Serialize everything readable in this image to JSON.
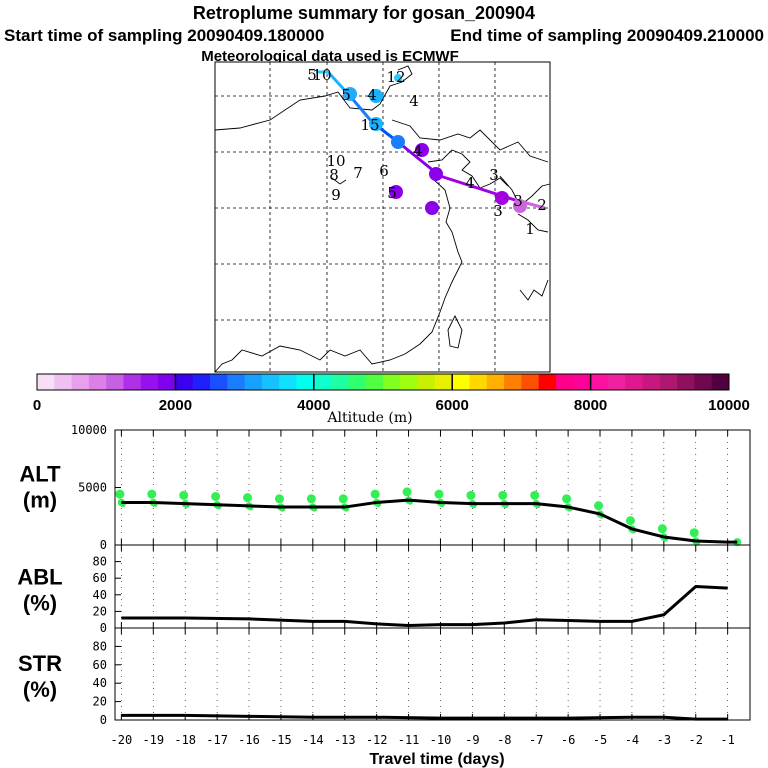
{
  "title": "Retroplume summary for gosan_200904",
  "start_label": "Start time of sampling 20090409.180000",
  "end_label": "End time of sampling 20090409.210000",
  "met_label": "Meteorological data used is ECMWF",
  "chart_data": [
    {
      "type": "map",
      "name": "trajectory-map",
      "track": [
        {
          "day": -1,
          "alt": 300,
          "color": "#cc66dd"
        },
        {
          "day": -2,
          "alt": 600,
          "color": "#a300e0"
        },
        {
          "day": -3,
          "alt": 1200,
          "color": "#8a00e8"
        },
        {
          "day": -4,
          "alt": 2200,
          "color": "#0055ff"
        },
        {
          "day": -5,
          "alt": 2700,
          "color": "#1a7cff"
        },
        {
          "day": -6,
          "alt": 3300,
          "color": "#17b3ff"
        },
        {
          "day": -7,
          "alt": 3500,
          "color": "#22ccff"
        },
        {
          "day": -8,
          "alt": 3600,
          "color": "#22ccff"
        },
        {
          "day": -9,
          "alt": 3600,
          "color": "#22ccff"
        }
      ],
      "day_labels": [
        "5",
        "10",
        "5",
        "4",
        "12",
        "15",
        "10",
        "8",
        "7",
        "6",
        "9",
        "5",
        "4",
        "4",
        "4",
        "3",
        "3",
        "3",
        "2",
        "1"
      ]
    },
    {
      "type": "colorbar",
      "name": "altitude-colorbar",
      "xlabel": "Altitude (m)",
      "ticks": [
        "0",
        "2000",
        "4000",
        "6000",
        "8000",
        "10000"
      ],
      "range": [
        0,
        10000
      ],
      "colors": [
        "#f7e0f7",
        "#f0c0f0",
        "#e8a0ec",
        "#dc80e8",
        "#c860e4",
        "#b030e8",
        "#9810ee",
        "#8000f0",
        "#3a00f0",
        "#2020ff",
        "#1a50ff",
        "#1a7cff",
        "#17a0ff",
        "#17c0ff",
        "#10e0ff",
        "#00ffee",
        "#10ffcc",
        "#20ffa0",
        "#30ff70",
        "#50ff40",
        "#80ff20",
        "#a0ff10",
        "#c8f000",
        "#e8f000",
        "#ffff00",
        "#ffd800",
        "#ffb000",
        "#ff8000",
        "#ff5000",
        "#ff0000",
        "#ff0088",
        "#ff0099",
        "#ff10a0",
        "#f020a0",
        "#e01890",
        "#c81880",
        "#b01870",
        "#901060",
        "#700850",
        "#500040"
      ]
    },
    {
      "type": "scatter+line",
      "name": "altitude-panel",
      "ylabel_top": "ALT",
      "ylabel_bottom": "(m)",
      "ylim": [
        0,
        10000
      ],
      "yticks": [
        "0",
        "5000",
        "10000"
      ],
      "xlim": [
        -20,
        -0.5
      ],
      "x": [
        -20,
        -19,
        -18,
        -17,
        -16,
        -15,
        -14,
        -13,
        -12,
        -11,
        -10,
        -9,
        -8,
        -7,
        -6,
        -5,
        -4,
        -3,
        -2,
        -1,
        -0.7
      ],
      "y": [
        3700,
        3700,
        3600,
        3500,
        3400,
        3300,
        3300,
        3300,
        3700,
        3900,
        3700,
        3600,
        3600,
        3600,
        3300,
        2700,
        1400,
        700,
        350,
        250,
        250
      ],
      "dot_color": "#33ee55"
    },
    {
      "type": "line",
      "name": "abl-panel",
      "ylabel_top": "ABL",
      "ylabel_bottom": "(%)",
      "ylim": [
        0,
        100
      ],
      "yticks": [
        "0",
        "20",
        "40",
        "60",
        "80"
      ],
      "x": [
        -20,
        -18,
        -16,
        -14,
        -13,
        -12,
        -11,
        -10,
        -9,
        -8,
        -7,
        -6,
        -5,
        -4,
        -3,
        -2,
        -1
      ],
      "y": [
        12,
        12,
        11,
        8,
        8,
        5,
        3,
        4,
        4,
        6,
        10,
        9,
        8,
        8,
        16,
        50,
        48
      ]
    },
    {
      "type": "line",
      "name": "str-panel",
      "ylabel_top": "STR",
      "ylabel_bottom": "(%)",
      "ylim": [
        0,
        100
      ],
      "yticks": [
        "0",
        "20",
        "40",
        "60",
        "80"
      ],
      "x": [
        -20,
        -18,
        -16,
        -14,
        -12,
        -10,
        -8,
        -6,
        -4,
        -3,
        -2,
        -1
      ],
      "y": [
        5,
        5,
        4,
        3,
        3,
        2,
        2,
        2,
        3,
        3,
        1,
        1
      ]
    }
  ],
  "x_axis": {
    "xlabel": "Travel time (days)",
    "ticks": [
      "-20",
      "-19",
      "-18",
      "-17",
      "-16",
      "-15",
      "-14",
      "-13",
      "-12",
      "-11",
      "-10",
      "-9",
      "-8",
      "-7",
      "-6",
      "-5",
      "-4",
      "-3",
      "-2",
      "-1"
    ]
  }
}
